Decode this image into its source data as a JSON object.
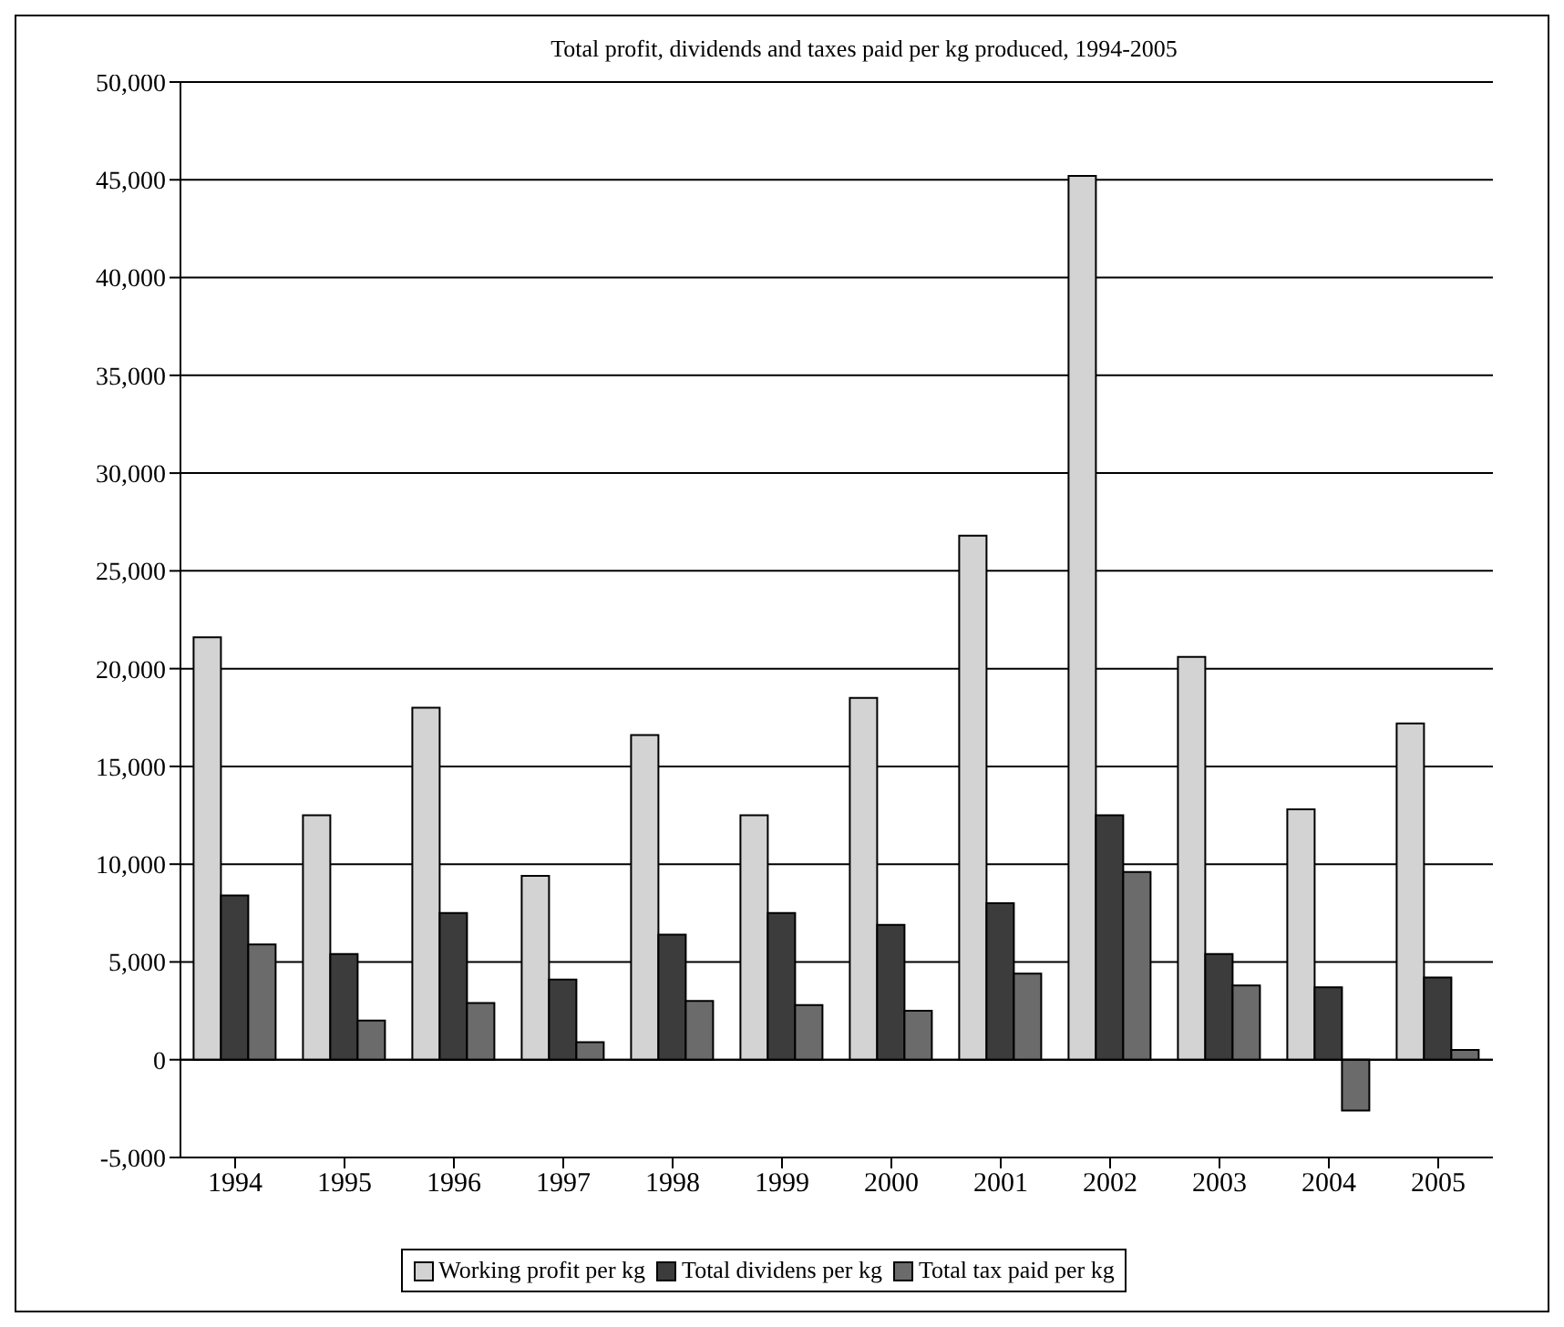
{
  "chart_data": {
    "type": "bar",
    "title": "Total profit, dividends and taxes paid per kg produced, 1994-2005",
    "categories": [
      "1994",
      "1995",
      "1996",
      "1997",
      "1998",
      "1999",
      "2000",
      "2001",
      "2002",
      "2003",
      "2004",
      "2005"
    ],
    "series": [
      {
        "name": "Working profit per kg",
        "color": "#d3d3d3",
        "values": [
          21600,
          12500,
          18000,
          9400,
          16600,
          12500,
          18500,
          26800,
          45200,
          20600,
          12800,
          17200
        ]
      },
      {
        "name": "Total dividens per kg",
        "color": "#3c3c3c",
        "values": [
          8400,
          5400,
          7500,
          4100,
          6400,
          7500,
          6900,
          8000,
          12500,
          5400,
          3700,
          4200
        ]
      },
      {
        "name": "Total tax paid per kg",
        "color": "#6b6b6b",
        "values": [
          5900,
          2000,
          2900,
          900,
          3000,
          2800,
          2500,
          4400,
          9600,
          3800,
          -2600,
          500
        ]
      }
    ],
    "ylim": [
      -5000,
      50000
    ],
    "yticks": [
      {
        "value": -5000,
        "label": "-5,000"
      },
      {
        "value": 0,
        "label": "0"
      },
      {
        "value": 5000,
        "label": "5,000"
      },
      {
        "value": 10000,
        "label": "10,000"
      },
      {
        "value": 15000,
        "label": "15,000"
      },
      {
        "value": 20000,
        "label": "20,000"
      },
      {
        "value": 25000,
        "label": "25,000"
      },
      {
        "value": 30000,
        "label": "30,000"
      },
      {
        "value": 35000,
        "label": "35,000"
      },
      {
        "value": 40000,
        "label": "40,000"
      },
      {
        "value": 45000,
        "label": "45,000"
      },
      {
        "value": 50000,
        "label": "50,000"
      }
    ],
    "grid": "y",
    "legend": "bottom"
  }
}
